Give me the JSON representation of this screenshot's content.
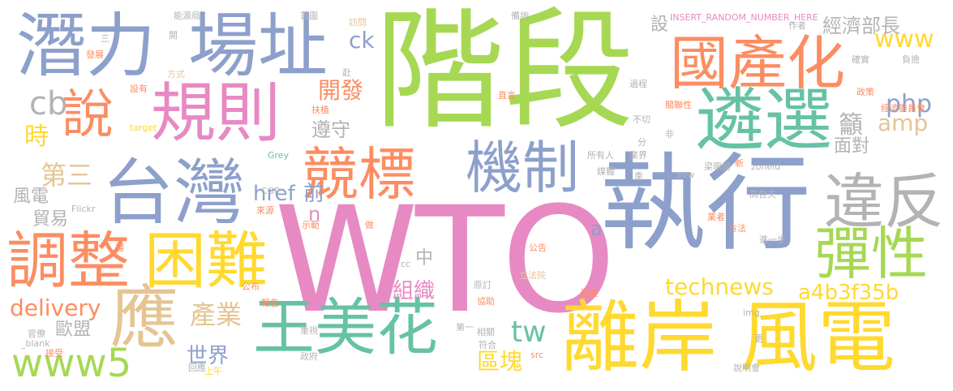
{
  "palette": {
    "green": "#a6d854",
    "pink": "#e78ac3",
    "blue": "#8da0cb",
    "orange": "#fc8d62",
    "teal": "#66c2a5",
    "yellow": "#ffd92f",
    "tan": "#e5c494",
    "gray": "#b3b3b3"
  },
  "words": [
    {
      "text": "階段",
      "color": "green",
      "emphasis": 10
    },
    {
      "text": "WTO",
      "color": "pink",
      "emphasis": 10
    },
    {
      "text": "執行",
      "color": "blue",
      "emphasis": 9
    },
    {
      "text": "離岸",
      "color": "yellow",
      "emphasis": 8
    },
    {
      "text": "風電",
      "color": "yellow",
      "emphasis": 8
    },
    {
      "text": "潛力",
      "color": "blue",
      "emphasis": 7
    },
    {
      "text": "場址",
      "color": "blue",
      "emphasis": 7
    },
    {
      "text": "台灣",
      "color": "blue",
      "emphasis": 7
    },
    {
      "text": "國產化",
      "color": "orange",
      "emphasis": 6
    },
    {
      "text": "遴選",
      "color": "teal",
      "emphasis": 6
    },
    {
      "text": "規則",
      "color": "pink",
      "emphasis": 6
    },
    {
      "text": "說",
      "color": "orange",
      "emphasis": 5
    },
    {
      "text": "機制",
      "color": "blue",
      "emphasis": 6
    },
    {
      "text": "競標",
      "color": "orange",
      "emphasis": 6
    },
    {
      "text": "違反",
      "color": "gray",
      "emphasis": 5
    },
    {
      "text": "彈性",
      "color": "green",
      "emphasis": 5
    },
    {
      "text": "調整",
      "color": "orange",
      "emphasis": 6
    },
    {
      "text": "困難",
      "color": "yellow",
      "emphasis": 6
    },
    {
      "text": "王美花",
      "color": "teal",
      "emphasis": 6
    },
    {
      "text": "應",
      "color": "tan",
      "emphasis": 6
    },
    {
      "text": "www5",
      "color": "green",
      "emphasis": 5
    },
    {
      "text": "cb",
      "color": "gray",
      "emphasis": 4
    },
    {
      "text": "時",
      "color": "yellow",
      "emphasis": 3
    },
    {
      "text": "第三",
      "color": "tan",
      "emphasis": 3
    },
    {
      "text": "風電",
      "color": "gray",
      "emphasis": 2
    },
    {
      "text": "貿易",
      "color": "gray",
      "emphasis": 2
    },
    {
      "text": "delivery",
      "color": "orange",
      "emphasis": 3
    },
    {
      "text": "歐盟",
      "color": "gray",
      "emphasis": 2
    },
    {
      "text": "產業",
      "color": "tan",
      "emphasis": 3
    },
    {
      "text": "世界",
      "color": "blue",
      "emphasis": 3
    },
    {
      "text": "開發",
      "color": "orange",
      "emphasis": 3
    },
    {
      "text": "ck",
      "color": "blue",
      "emphasis": 3
    },
    {
      "text": "遵守",
      "color": "gray",
      "emphasis": 3
    },
    {
      "text": "href",
      "color": "blue",
      "emphasis": 3
    },
    {
      "text": "前",
      "color": "blue",
      "emphasis": 3
    },
    {
      "text": "n",
      "color": "pink",
      "emphasis": 2
    },
    {
      "text": "a",
      "color": "blue",
      "emphasis": 2
    },
    {
      "text": "中",
      "color": "gray",
      "emphasis": 2
    },
    {
      "text": "組織",
      "color": "pink",
      "emphasis": 3
    },
    {
      "text": "tw",
      "color": "teal",
      "emphasis": 4
    },
    {
      "text": "區塊",
      "color": "yellow",
      "emphasis": 3
    },
    {
      "text": "technews",
      "color": "yellow",
      "emphasis": 3
    },
    {
      "text": "a4b3f35b",
      "color": "yellow",
      "emphasis": 3
    },
    {
      "text": "www",
      "color": "yellow",
      "emphasis": 3
    },
    {
      "text": "php",
      "color": "blue",
      "emphasis": 3
    },
    {
      "text": "amp",
      "color": "tan",
      "emphasis": 3
    },
    {
      "text": "經濟部長",
      "color": "gray",
      "emphasis": 3
    },
    {
      "text": "設",
      "color": "gray",
      "emphasis": 2
    },
    {
      "text": "INSERT_RANDOM_NUMBER_HERE",
      "color": "pink",
      "emphasis": 1
    },
    {
      "text": "籲",
      "color": "gray",
      "emphasis": 3
    },
    {
      "text": "面對",
      "color": "gray",
      "emphasis": 2
    },
    {
      "text": "能源局",
      "color": "gray",
      "emphasis": 1
    },
    {
      "text": "三",
      "color": "gray",
      "emphasis": 1
    },
    {
      "text": "開",
      "color": "gray",
      "emphasis": 1
    },
    {
      "text": "發展",
      "color": "orange",
      "emphasis": 1
    },
    {
      "text": "方式",
      "color": "tan",
      "emphasis": 1
    },
    {
      "text": "設有",
      "color": "orange",
      "emphasis": 1
    },
    {
      "text": "target",
      "color": "yellow",
      "emphasis": 1
    },
    {
      "text": "首圖",
      "color": "gray",
      "emphasis": 1
    },
    {
      "text": "訪問",
      "color": "tan",
      "emphasis": 1
    },
    {
      "text": "赴",
      "color": "gray",
      "emphasis": 1
    },
    {
      "text": "備詢",
      "color": "gray",
      "emphasis": 1
    },
    {
      "text": "作者",
      "color": "gray",
      "emphasis": 1
    },
    {
      "text": "確實",
      "color": "gray",
      "emphasis": 1
    },
    {
      "text": "負擔",
      "color": "gray",
      "emphasis": 1
    },
    {
      "text": "政策",
      "color": "orange",
      "emphasis": 1
    },
    {
      "text": "過程",
      "color": "gray",
      "emphasis": 1
    },
    {
      "text": "直言",
      "color": "orange",
      "emphasis": 1
    },
    {
      "text": "關聯性",
      "color": "orange",
      "emphasis": 1
    },
    {
      "text": "經濟委員會",
      "color": "orange",
      "emphasis": 1
    },
    {
      "text": "扶植",
      "color": "orange",
      "emphasis": 1
    },
    {
      "text": "不切",
      "color": "gray",
      "emphasis": 1
    },
    {
      "text": "非",
      "color": "gray",
      "emphasis": 1
    },
    {
      "text": "分",
      "color": "gray",
      "emphasis": 1
    },
    {
      "text": "所有人",
      "color": "gray",
      "emphasis": 1
    },
    {
      "text": "業界",
      "color": "gray",
      "emphasis": 1
    },
    {
      "text": "媒體",
      "color": "gray",
      "emphasis": 1
    },
    {
      "text": "梁珮綺",
      "color": "gray",
      "emphasis": 1
    },
    {
      "text": "新",
      "color": "orange",
      "emphasis": 1
    },
    {
      "text": "zoneid",
      "color": "gray",
      "emphasis": 1
    },
    {
      "text": "Grey",
      "color": "teal",
      "emphasis": 1
    },
    {
      "text": "CGP",
      "color": "gray",
      "emphasis": 1
    },
    {
      "text": "Flickr",
      "color": "gray",
      "emphasis": 1
    },
    {
      "text": "來源",
      "color": "orange",
      "emphasis": 1
    },
    {
      "text": "季",
      "color": "gray",
      "emphasis": 1
    },
    {
      "text": "avw",
      "color": "gray",
      "emphasis": 1
    },
    {
      "text": "高哲夫",
      "color": "gray",
      "emphasis": 1
    },
    {
      "text": "業者",
      "color": "orange",
      "emphasis": 1
    },
    {
      "text": "示範",
      "color": "orange",
      "emphasis": 1
    },
    {
      "text": "做",
      "color": "orange",
      "emphasis": 1
    },
    {
      "text": "方法",
      "color": "orange",
      "emphasis": 1
    },
    {
      "text": "進一步",
      "color": "gray",
      "emphasis": 1
    },
    {
      "text": "公告",
      "color": "orange",
      "emphasis": 1
    },
    {
      "text": "場",
      "color": "orange",
      "emphasis": 1
    },
    {
      "text": "cc",
      "color": "gray",
      "emphasis": 1
    },
    {
      "text": "立法院",
      "color": "tan",
      "emphasis": 1
    },
    {
      "text": "原訂",
      "color": "gray",
      "emphasis": 1
    },
    {
      "text": "公布",
      "color": "orange",
      "emphasis": 1
    },
    {
      "text": "報告",
      "color": "orange",
      "emphasis": 1
    },
    {
      "text": "協助",
      "color": "orange",
      "emphasis": 1
    },
    {
      "text": "難產",
      "color": "orange",
      "emphasis": 1
    },
    {
      "text": "img",
      "color": "gray",
      "emphasis": 1
    },
    {
      "text": "官僚",
      "color": "gray",
      "emphasis": 1
    },
    {
      "text": "_blank",
      "color": "gray",
      "emphasis": 1
    },
    {
      "text": "接受",
      "color": "orange",
      "emphasis": 1
    },
    {
      "text": "重視",
      "color": "gray",
      "emphasis": 1
    },
    {
      "text": "第一",
      "color": "gray",
      "emphasis": 1
    },
    {
      "text": "相關",
      "color": "gray",
      "emphasis": 1
    },
    {
      "text": "符合",
      "color": "gray",
      "emphasis": 1
    },
    {
      "text": "src",
      "color": "orange",
      "emphasis": 1
    },
    {
      "text": "更",
      "color": "gray",
      "emphasis": 1
    },
    {
      "text": "說明會",
      "color": "gray",
      "emphasis": 1
    },
    {
      "text": "政府",
      "color": "gray",
      "emphasis": 1
    },
    {
      "text": "回應",
      "color": "gray",
      "emphasis": 1
    },
    {
      "text": "上午",
      "color": "yellow",
      "emphasis": 1
    }
  ]
}
